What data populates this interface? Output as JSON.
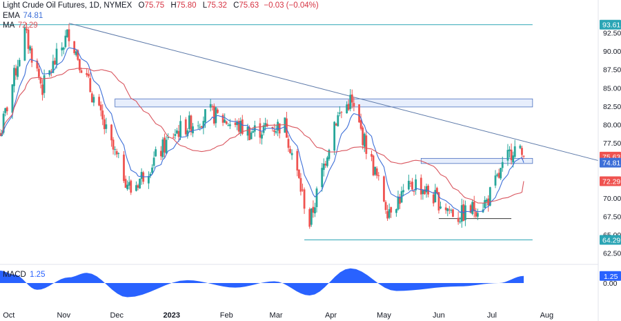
{
  "header": {
    "symbol": "Light Crude Oil Futures, 1D, NYMEX",
    "ohlc": [
      {
        "k": "O",
        "v": "75.75"
      },
      {
        "k": "H",
        "v": "75.80"
      },
      {
        "k": "L",
        "v": "75.32"
      },
      {
        "k": "C",
        "v": "75.63"
      }
    ],
    "change": "−0.03 (−0.04%)",
    "ema_label": "EMA",
    "ema_value": "74.81",
    "ma_label": "MA",
    "ma_value": "72.29",
    "macd_label": "MACD",
    "macd_value": "1.25"
  },
  "colors": {
    "up": "#26a69a",
    "down": "#ef5350",
    "ema": "#3d6fd8",
    "ma": "#d9545d",
    "trend": "#5b78a8",
    "band_fill": "#e7eefc",
    "band_stroke": "#4a6fbf",
    "level": "#2ba5b5",
    "base": "#333333",
    "macd": "#2962ff"
  },
  "chart_data": {
    "type": "candlestick",
    "title": "Light Crude Oil Futures, 1D, NYMEX",
    "x_ticks": [
      "Oct",
      "Nov",
      "Dec",
      "2023",
      "Feb",
      "Mar",
      "Apr",
      "May",
      "Jun",
      "Jul",
      "Aug"
    ],
    "y_ticks": [
      "62.50",
      "65.00",
      "67.50",
      "70.00",
      "72.50",
      "75.00",
      "77.50",
      "80.00",
      "82.50",
      "85.00",
      "87.50",
      "90.00",
      "92.50"
    ],
    "ylim": [
      60.5,
      95.5
    ],
    "price_labels": [
      {
        "text": "93.61",
        "value": 93.61,
        "color": "#2ba5b5"
      },
      {
        "text": "75.63",
        "value": 75.63,
        "color": "#ef5350"
      },
      {
        "text": "74.81",
        "value": 74.81,
        "color": "#3d6fd8"
      },
      {
        "text": "72.29",
        "value": 72.29,
        "color": "#ef5350"
      },
      {
        "text": "64.29",
        "value": 64.29,
        "color": "#2ba5b5"
      }
    ],
    "ohlc_key_points": [
      {
        "date": "2022-09-26",
        "close": 78.5
      },
      {
        "date": "2022-10-10",
        "close": 92.5
      },
      {
        "date": "2022-10-20",
        "close": 85.0
      },
      {
        "date": "2022-11-04",
        "close": 92.6
      },
      {
        "date": "2022-11-28",
        "close": 77.0
      },
      {
        "date": "2022-12-09",
        "close": 71.0
      },
      {
        "date": "2023-01-03",
        "close": 79.0
      },
      {
        "date": "2023-01-23",
        "close": 81.5
      },
      {
        "date": "2023-02-14",
        "close": 79.0
      },
      {
        "date": "2023-03-06",
        "close": 80.0
      },
      {
        "date": "2023-03-20",
        "close": 66.5
      },
      {
        "date": "2023-04-03",
        "close": 80.4
      },
      {
        "date": "2023-04-12",
        "close": 83.3
      },
      {
        "date": "2023-05-03",
        "close": 68.5
      },
      {
        "date": "2023-05-19",
        "close": 72.0
      },
      {
        "date": "2023-06-12",
        "close": 67.5
      },
      {
        "date": "2023-06-28",
        "close": 69.5
      },
      {
        "date": "2023-07-13",
        "close": 76.9
      },
      {
        "date": "2023-07-19",
        "close": 75.63
      }
    ],
    "levels": [
      {
        "name": "resistance-zone",
        "y_low": 82.4,
        "y_high": 83.5,
        "x_start": "2022-11-30",
        "x_end": "2023-07-24"
      },
      {
        "name": "support-zone",
        "y_low": 74.7,
        "y_high": 75.4,
        "x_start": "2023-05-22",
        "x_end": "2023-07-24"
      },
      {
        "name": "top-level",
        "y": 93.61,
        "x_start": "2022-09-26",
        "x_end": "2023-07-24"
      },
      {
        "name": "low-level",
        "y": 64.29,
        "x_start": "2023-03-17",
        "x_end": "2023-07-24"
      },
      {
        "name": "double-bottom-base",
        "y": 67.2,
        "x_start": "2023-06-01",
        "x_end": "2023-07-12"
      }
    ],
    "trendline": {
      "from": {
        "date": "2022-11-04",
        "value": 93.8
      },
      "to": {
        "date": "2023-07-24",
        "value": 75.1
      }
    },
    "macd": {
      "label": "MACD",
      "value": 1.25,
      "ticks": [
        "0.00"
      ],
      "points": [
        {
          "date": "2022-09-26",
          "value": 2.2
        },
        {
          "date": "2022-10-04",
          "value": 1.5
        },
        {
          "date": "2022-10-17",
          "value": -1.2
        },
        {
          "date": "2022-11-04",
          "value": 1.0
        },
        {
          "date": "2022-11-14",
          "value": 1.8
        },
        {
          "date": "2022-12-07",
          "value": -2.5
        },
        {
          "date": "2023-01-10",
          "value": 0.5
        },
        {
          "date": "2023-02-06",
          "value": -0.8
        },
        {
          "date": "2023-02-28",
          "value": 0.3
        },
        {
          "date": "2023-03-20",
          "value": -2.2
        },
        {
          "date": "2023-04-12",
          "value": 2.6
        },
        {
          "date": "2023-05-08",
          "value": -1.4
        },
        {
          "date": "2023-06-12",
          "value": -0.6
        },
        {
          "date": "2023-07-05",
          "value": 0.0
        },
        {
          "date": "2023-07-19",
          "value": 1.25
        }
      ]
    }
  }
}
